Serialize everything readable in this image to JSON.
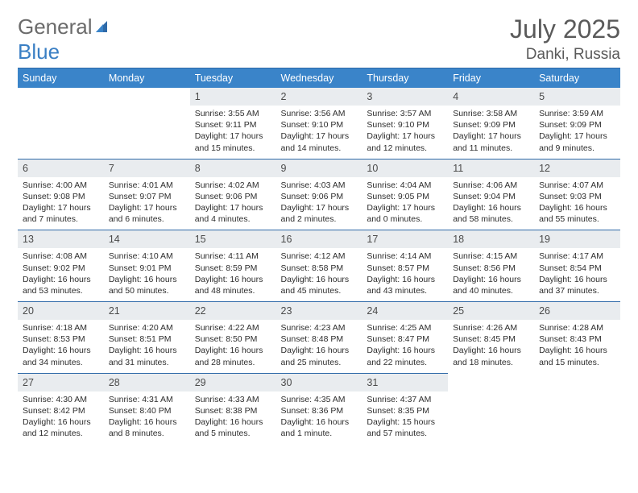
{
  "brand": {
    "text1": "General",
    "text2": "Blue"
  },
  "title": "July 2025",
  "location": "Danki, Russia",
  "colors": {
    "header_bg": "#3a84c9",
    "rule": "#2f6aa8",
    "daynum_bg": "#e9ecef",
    "text": "#2d2d2d",
    "title_text": "#5a5a5a"
  },
  "layout": {
    "cols": 7,
    "rows": 5,
    "first_weekday": "Sunday",
    "month_start_col": 2
  },
  "weekdays": [
    "Sunday",
    "Monday",
    "Tuesday",
    "Wednesday",
    "Thursday",
    "Friday",
    "Saturday"
  ],
  "days": [
    {
      "n": 1,
      "sr": "3:55 AM",
      "ss": "9:11 PM",
      "dl": "17 hours and 15 minutes."
    },
    {
      "n": 2,
      "sr": "3:56 AM",
      "ss": "9:10 PM",
      "dl": "17 hours and 14 minutes."
    },
    {
      "n": 3,
      "sr": "3:57 AM",
      "ss": "9:10 PM",
      "dl": "17 hours and 12 minutes."
    },
    {
      "n": 4,
      "sr": "3:58 AM",
      "ss": "9:09 PM",
      "dl": "17 hours and 11 minutes."
    },
    {
      "n": 5,
      "sr": "3:59 AM",
      "ss": "9:09 PM",
      "dl": "17 hours and 9 minutes."
    },
    {
      "n": 6,
      "sr": "4:00 AM",
      "ss": "9:08 PM",
      "dl": "17 hours and 7 minutes."
    },
    {
      "n": 7,
      "sr": "4:01 AM",
      "ss": "9:07 PM",
      "dl": "17 hours and 6 minutes."
    },
    {
      "n": 8,
      "sr": "4:02 AM",
      "ss": "9:06 PM",
      "dl": "17 hours and 4 minutes."
    },
    {
      "n": 9,
      "sr": "4:03 AM",
      "ss": "9:06 PM",
      "dl": "17 hours and 2 minutes."
    },
    {
      "n": 10,
      "sr": "4:04 AM",
      "ss": "9:05 PM",
      "dl": "17 hours and 0 minutes."
    },
    {
      "n": 11,
      "sr": "4:06 AM",
      "ss": "9:04 PM",
      "dl": "16 hours and 58 minutes."
    },
    {
      "n": 12,
      "sr": "4:07 AM",
      "ss": "9:03 PM",
      "dl": "16 hours and 55 minutes."
    },
    {
      "n": 13,
      "sr": "4:08 AM",
      "ss": "9:02 PM",
      "dl": "16 hours and 53 minutes."
    },
    {
      "n": 14,
      "sr": "4:10 AM",
      "ss": "9:01 PM",
      "dl": "16 hours and 50 minutes."
    },
    {
      "n": 15,
      "sr": "4:11 AM",
      "ss": "8:59 PM",
      "dl": "16 hours and 48 minutes."
    },
    {
      "n": 16,
      "sr": "4:12 AM",
      "ss": "8:58 PM",
      "dl": "16 hours and 45 minutes."
    },
    {
      "n": 17,
      "sr": "4:14 AM",
      "ss": "8:57 PM",
      "dl": "16 hours and 43 minutes."
    },
    {
      "n": 18,
      "sr": "4:15 AM",
      "ss": "8:56 PM",
      "dl": "16 hours and 40 minutes."
    },
    {
      "n": 19,
      "sr": "4:17 AM",
      "ss": "8:54 PM",
      "dl": "16 hours and 37 minutes."
    },
    {
      "n": 20,
      "sr": "4:18 AM",
      "ss": "8:53 PM",
      "dl": "16 hours and 34 minutes."
    },
    {
      "n": 21,
      "sr": "4:20 AM",
      "ss": "8:51 PM",
      "dl": "16 hours and 31 minutes."
    },
    {
      "n": 22,
      "sr": "4:22 AM",
      "ss": "8:50 PM",
      "dl": "16 hours and 28 minutes."
    },
    {
      "n": 23,
      "sr": "4:23 AM",
      "ss": "8:48 PM",
      "dl": "16 hours and 25 minutes."
    },
    {
      "n": 24,
      "sr": "4:25 AM",
      "ss": "8:47 PM",
      "dl": "16 hours and 22 minutes."
    },
    {
      "n": 25,
      "sr": "4:26 AM",
      "ss": "8:45 PM",
      "dl": "16 hours and 18 minutes."
    },
    {
      "n": 26,
      "sr": "4:28 AM",
      "ss": "8:43 PM",
      "dl": "16 hours and 15 minutes."
    },
    {
      "n": 27,
      "sr": "4:30 AM",
      "ss": "8:42 PM",
      "dl": "16 hours and 12 minutes."
    },
    {
      "n": 28,
      "sr": "4:31 AM",
      "ss": "8:40 PM",
      "dl": "16 hours and 8 minutes."
    },
    {
      "n": 29,
      "sr": "4:33 AM",
      "ss": "8:38 PM",
      "dl": "16 hours and 5 minutes."
    },
    {
      "n": 30,
      "sr": "4:35 AM",
      "ss": "8:36 PM",
      "dl": "16 hours and 1 minute."
    },
    {
      "n": 31,
      "sr": "4:37 AM",
      "ss": "8:35 PM",
      "dl": "15 hours and 57 minutes."
    }
  ],
  "labels": {
    "sunrise": "Sunrise: ",
    "sunset": "Sunset: ",
    "daylight": "Daylight: "
  }
}
